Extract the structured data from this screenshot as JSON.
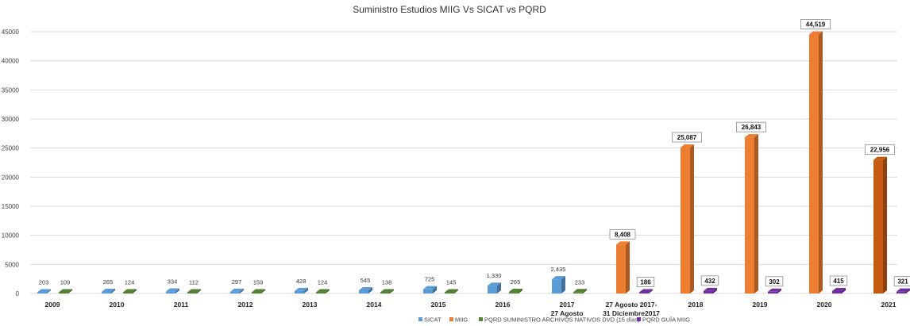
{
  "chart_data": {
    "type": "bar",
    "title": "Suministro Estudios MIIG Vs SICAT vs PQRD",
    "xlabel": "",
    "ylabel": "",
    "ylim": [
      0,
      45000
    ],
    "yticks": [
      "0",
      "5000",
      "10000",
      "15000",
      "20000",
      "25000",
      "30000",
      "35000",
      "40000",
      "45000"
    ],
    "categories": [
      "2009",
      "2010",
      "2011",
      "2012",
      "2013",
      "2014",
      "2015",
      "2016",
      "2017\n27 Agosto",
      "27 Agosto 2017-\n31 Diciembre2017",
      "2018",
      "2019",
      "2020",
      "2021"
    ],
    "series": [
      {
        "name": "SICAT",
        "color": "#5B9BD5",
        "values": [
          203,
          265,
          334,
          297,
          428,
          545,
          725,
          1330,
          2435,
          null,
          null,
          null,
          null,
          null
        ]
      },
      {
        "name": "MIIG",
        "color": "#ED7D31",
        "values": [
          null,
          null,
          null,
          null,
          null,
          null,
          null,
          null,
          null,
          8408,
          25087,
          26843,
          44519,
          22956
        ]
      },
      {
        "name": "PQRD SUMINISTRO ARCHIVOS NATIVOS DVD (15 días)",
        "color": "#548235",
        "values": [
          109,
          124,
          112,
          159,
          124,
          138,
          145,
          265,
          233,
          null,
          null,
          null,
          null,
          null
        ]
      },
      {
        "name": "PQRD GUÍA MIIG",
        "color": "#7030A0",
        "values": [
          null,
          null,
          null,
          null,
          null,
          null,
          null,
          null,
          null,
          186,
          432,
          302,
          415,
          321
        ]
      }
    ],
    "data_labels": [
      "203",
      "109",
      "265",
      "124",
      "334",
      "112",
      "297",
      "159",
      "428",
      "124",
      "545",
      "138",
      "725",
      "145",
      "1,330",
      "265",
      "2,435",
      "233",
      "8,408",
      "186",
      "25,087",
      "432",
      "26,843",
      "302",
      "44,519",
      "415",
      "22,956",
      "321"
    ],
    "grid": true,
    "legend_position": "bottom"
  }
}
